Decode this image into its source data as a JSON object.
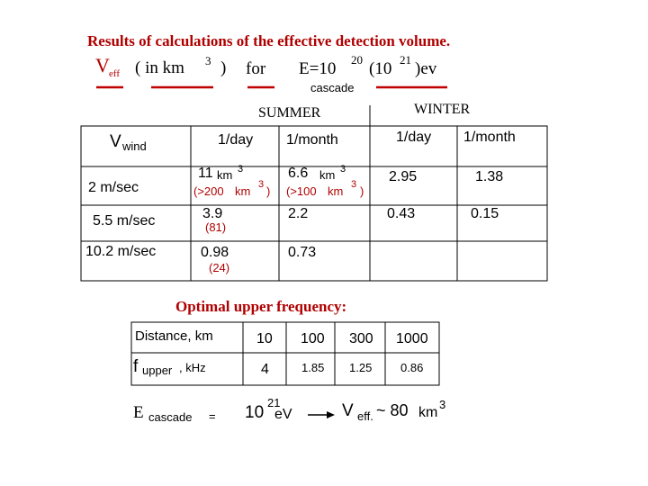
{
  "title": "Results of calculations of the effective detection volume.",
  "condition": {
    "v": "V",
    "v_sub": "eff",
    "unit_open": "( in km",
    "unit_sup": "3",
    "unit_close": ")",
    "for": "for",
    "energy": "E=10",
    "energy_sup": "20",
    "energy_alt": "(10",
    "energy_alt_sup": "21",
    "energy_unit": ")ev",
    "energy_sub": "cascade"
  },
  "volume_table": {
    "seasons": [
      "SUMMER",
      "WINTER"
    ],
    "header": {
      "v": "V",
      "v_sub": "wind",
      "columns": [
        "1/day",
        "1/month",
        "1/day",
        "1/month"
      ]
    },
    "rows": [
      {
        "label": "2 m/sec",
        "cells": [
          {
            "value": "11",
            "unit": "km",
            "unit_sup": "3",
            "note": "(>200",
            "note_unit": "km",
            "note_sup": "3",
            "note_close": ")"
          },
          {
            "value": "6.6",
            "unit": "km",
            "unit_sup": "3",
            "note": "(>100",
            "note_unit": "km",
            "note_sup": "3",
            "note_close": ")"
          },
          {
            "value": "2.95"
          },
          {
            "value": "1.38"
          }
        ]
      },
      {
        "label": "5.5 m/sec",
        "cells": [
          {
            "value": "3.9",
            "note": "(81)"
          },
          {
            "value": "2.2"
          },
          {
            "value": "0.43"
          },
          {
            "value": "0.15"
          }
        ]
      },
      {
        "label": "10.2 m/sec",
        "cells": [
          {
            "value": "0.98",
            "note": "(24)"
          },
          {
            "value": "0.73"
          }
        ]
      }
    ]
  },
  "frequency_title": "Optimal upper frequency:",
  "frequency_table": {
    "header": [
      "Distance, km",
      "10",
      "100",
      "300",
      "1000"
    ],
    "row": {
      "f": "f",
      "f_sub": "upper",
      "f_unit": ", kHz",
      "values": [
        "4",
        "1.85",
        "1.25",
        "0.86"
      ]
    }
  },
  "footer": {
    "e": "E",
    "e_sub": "cascade",
    "eq": "=",
    "energy": "10",
    "energy_sup": "21",
    "energy_unit": "eV",
    "v": "V",
    "v_sub": "eff.",
    "approx": "~ 80",
    "unit": "km",
    "unit_sup": "3"
  }
}
